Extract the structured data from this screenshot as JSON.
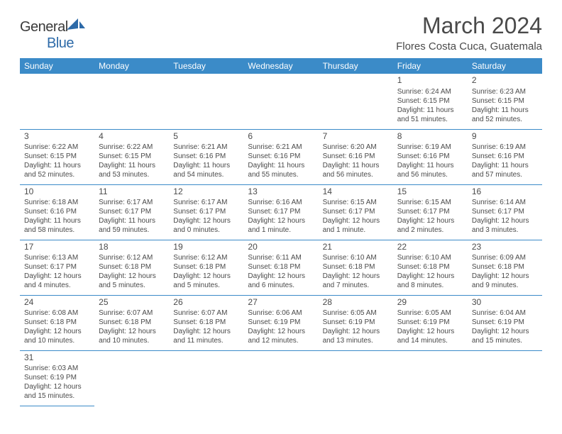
{
  "logo": {
    "part1": "General",
    "part2": "Blue"
  },
  "title": "March 2024",
  "location": "Flores Costa Cuca, Guatemala",
  "colors": {
    "header_bg": "#3b8bc8",
    "text": "#4a4a4a",
    "logo_gray": "#5a5a5a",
    "logo_blue": "#2d6aa8"
  },
  "weekdays": [
    "Sunday",
    "Monday",
    "Tuesday",
    "Wednesday",
    "Thursday",
    "Friday",
    "Saturday"
  ],
  "weeks": [
    [
      null,
      null,
      null,
      null,
      null,
      {
        "n": "1",
        "sr": "Sunrise: 6:24 AM",
        "ss": "Sunset: 6:15 PM",
        "dl": "Daylight: 11 hours and 51 minutes."
      },
      {
        "n": "2",
        "sr": "Sunrise: 6:23 AM",
        "ss": "Sunset: 6:15 PM",
        "dl": "Daylight: 11 hours and 52 minutes."
      }
    ],
    [
      {
        "n": "3",
        "sr": "Sunrise: 6:22 AM",
        "ss": "Sunset: 6:15 PM",
        "dl": "Daylight: 11 hours and 52 minutes."
      },
      {
        "n": "4",
        "sr": "Sunrise: 6:22 AM",
        "ss": "Sunset: 6:15 PM",
        "dl": "Daylight: 11 hours and 53 minutes."
      },
      {
        "n": "5",
        "sr": "Sunrise: 6:21 AM",
        "ss": "Sunset: 6:16 PM",
        "dl": "Daylight: 11 hours and 54 minutes."
      },
      {
        "n": "6",
        "sr": "Sunrise: 6:21 AM",
        "ss": "Sunset: 6:16 PM",
        "dl": "Daylight: 11 hours and 55 minutes."
      },
      {
        "n": "7",
        "sr": "Sunrise: 6:20 AM",
        "ss": "Sunset: 6:16 PM",
        "dl": "Daylight: 11 hours and 56 minutes."
      },
      {
        "n": "8",
        "sr": "Sunrise: 6:19 AM",
        "ss": "Sunset: 6:16 PM",
        "dl": "Daylight: 11 hours and 56 minutes."
      },
      {
        "n": "9",
        "sr": "Sunrise: 6:19 AM",
        "ss": "Sunset: 6:16 PM",
        "dl": "Daylight: 11 hours and 57 minutes."
      }
    ],
    [
      {
        "n": "10",
        "sr": "Sunrise: 6:18 AM",
        "ss": "Sunset: 6:16 PM",
        "dl": "Daylight: 11 hours and 58 minutes."
      },
      {
        "n": "11",
        "sr": "Sunrise: 6:17 AM",
        "ss": "Sunset: 6:17 PM",
        "dl": "Daylight: 11 hours and 59 minutes."
      },
      {
        "n": "12",
        "sr": "Sunrise: 6:17 AM",
        "ss": "Sunset: 6:17 PM",
        "dl": "Daylight: 12 hours and 0 minutes."
      },
      {
        "n": "13",
        "sr": "Sunrise: 6:16 AM",
        "ss": "Sunset: 6:17 PM",
        "dl": "Daylight: 12 hours and 1 minute."
      },
      {
        "n": "14",
        "sr": "Sunrise: 6:15 AM",
        "ss": "Sunset: 6:17 PM",
        "dl": "Daylight: 12 hours and 1 minute."
      },
      {
        "n": "15",
        "sr": "Sunrise: 6:15 AM",
        "ss": "Sunset: 6:17 PM",
        "dl": "Daylight: 12 hours and 2 minutes."
      },
      {
        "n": "16",
        "sr": "Sunrise: 6:14 AM",
        "ss": "Sunset: 6:17 PM",
        "dl": "Daylight: 12 hours and 3 minutes."
      }
    ],
    [
      {
        "n": "17",
        "sr": "Sunrise: 6:13 AM",
        "ss": "Sunset: 6:17 PM",
        "dl": "Daylight: 12 hours and 4 minutes."
      },
      {
        "n": "18",
        "sr": "Sunrise: 6:12 AM",
        "ss": "Sunset: 6:18 PM",
        "dl": "Daylight: 12 hours and 5 minutes."
      },
      {
        "n": "19",
        "sr": "Sunrise: 6:12 AM",
        "ss": "Sunset: 6:18 PM",
        "dl": "Daylight: 12 hours and 5 minutes."
      },
      {
        "n": "20",
        "sr": "Sunrise: 6:11 AM",
        "ss": "Sunset: 6:18 PM",
        "dl": "Daylight: 12 hours and 6 minutes."
      },
      {
        "n": "21",
        "sr": "Sunrise: 6:10 AM",
        "ss": "Sunset: 6:18 PM",
        "dl": "Daylight: 12 hours and 7 minutes."
      },
      {
        "n": "22",
        "sr": "Sunrise: 6:10 AM",
        "ss": "Sunset: 6:18 PM",
        "dl": "Daylight: 12 hours and 8 minutes."
      },
      {
        "n": "23",
        "sr": "Sunrise: 6:09 AM",
        "ss": "Sunset: 6:18 PM",
        "dl": "Daylight: 12 hours and 9 minutes."
      }
    ],
    [
      {
        "n": "24",
        "sr": "Sunrise: 6:08 AM",
        "ss": "Sunset: 6:18 PM",
        "dl": "Daylight: 12 hours and 10 minutes."
      },
      {
        "n": "25",
        "sr": "Sunrise: 6:07 AM",
        "ss": "Sunset: 6:18 PM",
        "dl": "Daylight: 12 hours and 10 minutes."
      },
      {
        "n": "26",
        "sr": "Sunrise: 6:07 AM",
        "ss": "Sunset: 6:18 PM",
        "dl": "Daylight: 12 hours and 11 minutes."
      },
      {
        "n": "27",
        "sr": "Sunrise: 6:06 AM",
        "ss": "Sunset: 6:19 PM",
        "dl": "Daylight: 12 hours and 12 minutes."
      },
      {
        "n": "28",
        "sr": "Sunrise: 6:05 AM",
        "ss": "Sunset: 6:19 PM",
        "dl": "Daylight: 12 hours and 13 minutes."
      },
      {
        "n": "29",
        "sr": "Sunrise: 6:05 AM",
        "ss": "Sunset: 6:19 PM",
        "dl": "Daylight: 12 hours and 14 minutes."
      },
      {
        "n": "30",
        "sr": "Sunrise: 6:04 AM",
        "ss": "Sunset: 6:19 PM",
        "dl": "Daylight: 12 hours and 15 minutes."
      }
    ],
    [
      {
        "n": "31",
        "sr": "Sunrise: 6:03 AM",
        "ss": "Sunset: 6:19 PM",
        "dl": "Daylight: 12 hours and 15 minutes."
      },
      null,
      null,
      null,
      null,
      null,
      null
    ]
  ]
}
